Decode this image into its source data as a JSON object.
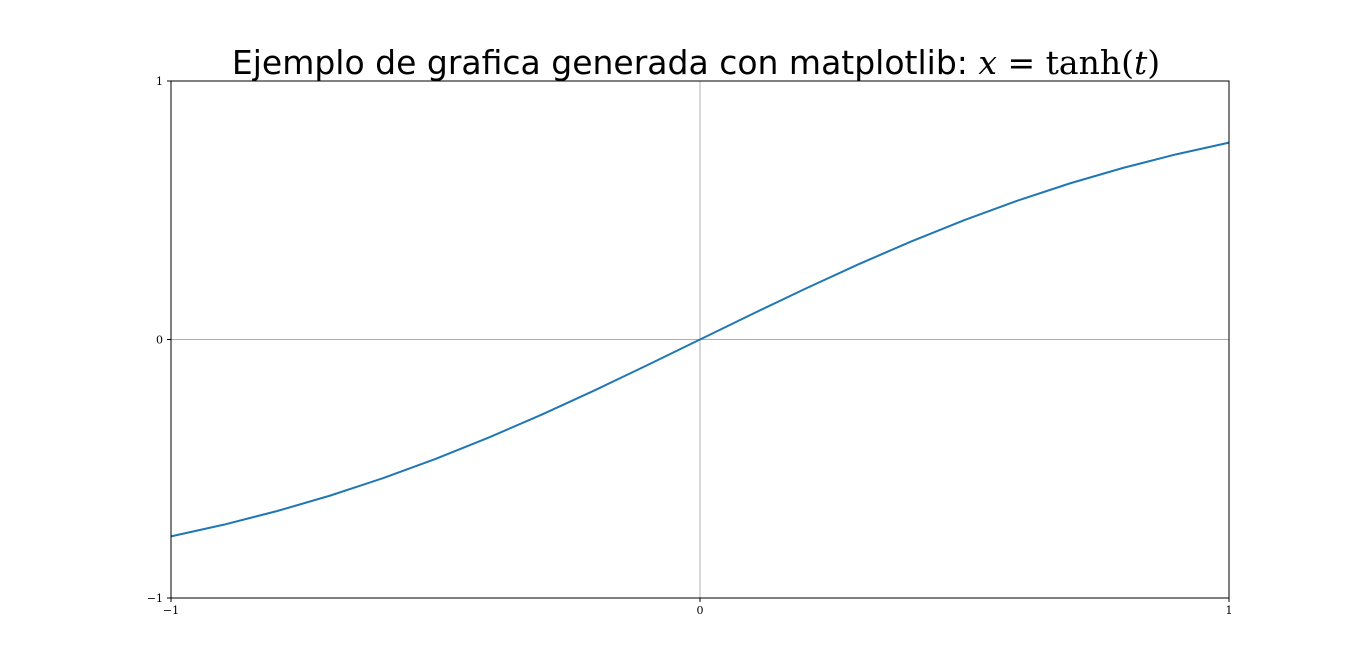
{
  "chart_data": {
    "type": "line",
    "title": {
      "text": "Ejemplo de grafica generada con matplotlib: ",
      "math": {
        "variable": "x",
        "equals": " = ",
        "function": "tanh",
        "open_paren": "(",
        "argument": "t",
        "close_paren": ")"
      }
    },
    "xlim": [
      -1,
      1
    ],
    "ylim": [
      -1,
      1
    ],
    "x_ticks": [
      {
        "value": -1,
        "label": "−1"
      },
      {
        "value": 0,
        "label": "0"
      },
      {
        "value": 1,
        "label": "1"
      }
    ],
    "y_ticks": [
      {
        "value": -1,
        "label": "−1"
      },
      {
        "value": 0,
        "label": "0"
      },
      {
        "value": 1,
        "label": "1"
      }
    ],
    "reference_lines": {
      "x": 0,
      "y": 0,
      "color": "#b0b0b0"
    },
    "grid": false,
    "series": [
      {
        "color": "#1f77b4",
        "x": [
          -1.0,
          -0.9,
          -0.8,
          -0.7,
          -0.6,
          -0.5,
          -0.4,
          -0.3,
          -0.2,
          -0.1,
          0.0,
          0.1,
          0.2,
          0.3,
          0.4,
          0.5,
          0.6,
          0.7,
          0.8,
          0.9,
          1.0
        ],
        "y": [
          -0.7616,
          -0.7163,
          -0.664,
          -0.6044,
          -0.537,
          -0.4621,
          -0.3799,
          -0.2913,
          -0.1974,
          -0.0997,
          0.0,
          0.0997,
          0.1974,
          0.2913,
          0.3799,
          0.4621,
          0.537,
          0.6044,
          0.664,
          0.7163,
          0.7616
        ]
      }
    ]
  }
}
